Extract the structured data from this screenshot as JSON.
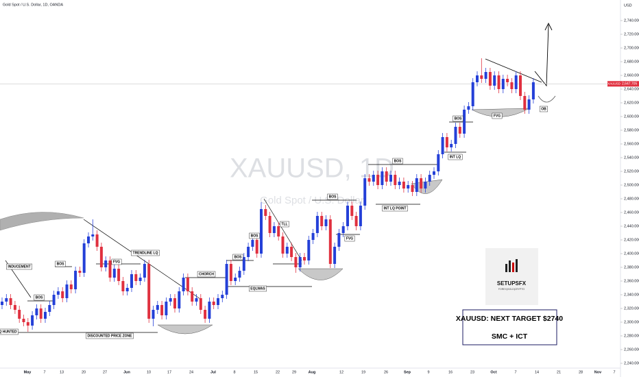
{
  "chart_data": {
    "type": "candlestick",
    "header": "Gold Spot / U.S. Dollar, 1D, OANDA",
    "currency": "USD",
    "watermark": "XAUUSD, 1D",
    "watermark_subtitle": "Gold Spot / U.S. Dollar",
    "symbol": "XAUUSD",
    "last_price": {
      "value": 2647.705,
      "label": "2,647.705"
    },
    "up_color": "#2440d8",
    "down_color": "#e0303f",
    "ylim": [
      2240,
      2740
    ],
    "yticks": [
      {
        "value": 2240,
        "label": "2,240.000"
      },
      {
        "value": 2260,
        "label": "2,260.000"
      },
      {
        "value": 2280,
        "label": "2,280.000"
      },
      {
        "value": 2300,
        "label": "2,300.000"
      },
      {
        "value": 2320,
        "label": "2,320.000"
      },
      {
        "value": 2340,
        "label": "2,340.000"
      },
      {
        "value": 2360,
        "label": "2,360.000"
      },
      {
        "value": 2380,
        "label": "2,380.000"
      },
      {
        "value": 2400,
        "label": "2,400.000"
      },
      {
        "value": 2420,
        "label": "2,420.000"
      },
      {
        "value": 2440,
        "label": "2,440.000"
      },
      {
        "value": 2460,
        "label": "2,460.000"
      },
      {
        "value": 2480,
        "label": "2,480.000"
      },
      {
        "value": 2500,
        "label": "2,500.000"
      },
      {
        "value": 2520,
        "label": "2,520.000"
      },
      {
        "value": 2540,
        "label": "2,540.000"
      },
      {
        "value": 2560,
        "label": "2,560.000"
      },
      {
        "value": 2580,
        "label": "2,580.000"
      },
      {
        "value": 2600,
        "label": "2,600.000"
      },
      {
        "value": 2620,
        "label": "2,620.000"
      },
      {
        "value": 2640,
        "label": "2,640.000"
      },
      {
        "value": 2660,
        "label": "2,660.000"
      },
      {
        "value": 2680,
        "label": "2,680.000"
      },
      {
        "value": 2700,
        "label": "2,700.000"
      },
      {
        "value": 2720,
        "label": "2,720.000"
      },
      {
        "value": 2740,
        "label": "2,740.000"
      }
    ],
    "xtick_labels": [
      "May",
      "7",
      "13",
      "20",
      "27",
      "Jun",
      "10",
      "17",
      "24",
      "Jul",
      "8",
      "15",
      "22",
      "29",
      "Aug",
      "12",
      "19",
      "26",
      "Sep",
      "9",
      "16",
      "23",
      "Oct",
      "7",
      "14",
      "21",
      "28",
      "Nov",
      "7"
    ],
    "open": [
      2325,
      2330,
      2335,
      2325,
      2318,
      2305,
      2300,
      2295,
      2310,
      2320,
      2305,
      2315,
      2325,
      2340,
      2345,
      2335,
      2355,
      2348,
      2375,
      2372,
      2415,
      2425,
      2428,
      2410,
      2380,
      2390,
      2365,
      2378,
      2360,
      2345,
      2350,
      2370,
      2360,
      2365,
      2385,
      2305,
      2318,
      2325,
      2310,
      2330,
      2335,
      2320,
      2345,
      2365,
      2345,
      2330,
      2335,
      2318,
      2305,
      2330,
      2325,
      2335,
      2340,
      2385,
      2360,
      2365,
      2375,
      2395,
      2410,
      2420,
      2400,
      2465,
      2455,
      2430,
      2440,
      2425,
      2400,
      2410,
      2395,
      2380,
      2395,
      2390,
      2420,
      2430,
      2455,
      2440,
      2450,
      2385,
      2410,
      2430,
      2440,
      2470,
      2455,
      2440,
      2470,
      2510,
      2505,
      2515,
      2500,
      2520,
      2505,
      2515,
      2500,
      2505,
      2495,
      2500,
      2490,
      2510,
      2495,
      2505,
      2515,
      2520,
      2545,
      2570,
      2555,
      2560,
      2585,
      2575,
      2610,
      2615,
      2650,
      2660,
      2655,
      2665,
      2645,
      2660,
      2640,
      2655,
      2650,
      2640,
      2660,
      2630,
      2610,
      2625
    ],
    "high": [
      2336,
      2341,
      2341,
      2331,
      2324,
      2311,
      2306,
      2316,
      2326,
      2326,
      2321,
      2331,
      2346,
      2351,
      2351,
      2361,
      2361,
      2381,
      2381,
      2421,
      2431,
      2450,
      2434,
      2416,
      2396,
      2396,
      2384,
      2384,
      2366,
      2356,
      2376,
      2376,
      2371,
      2391,
      2391,
      2324,
      2331,
      2331,
      2336,
      2341,
      2341,
      2351,
      2371,
      2371,
      2351,
      2341,
      2341,
      2324,
      2336,
      2336,
      2341,
      2346,
      2391,
      2391,
      2371,
      2381,
      2401,
      2416,
      2426,
      2426,
      2475,
      2471,
      2461,
      2446,
      2446,
      2431,
      2416,
      2416,
      2401,
      2401,
      2401,
      2426,
      2436,
      2461,
      2461,
      2456,
      2456,
      2416,
      2436,
      2446,
      2476,
      2476,
      2461,
      2476,
      2516,
      2516,
      2521,
      2521,
      2526,
      2526,
      2521,
      2521,
      2511,
      2511,
      2506,
      2506,
      2516,
      2516,
      2511,
      2521,
      2526,
      2551,
      2576,
      2576,
      2566,
      2591,
      2591,
      2616,
      2621,
      2656,
      2666,
      2685,
      2671,
      2671,
      2666,
      2666,
      2661,
      2661,
      2656,
      2666,
      2666,
      2636,
      2631,
      2656
    ],
    "low": [
      2319,
      2324,
      2319,
      2312,
      2299,
      2294,
      2286,
      2289,
      2304,
      2299,
      2299,
      2309,
      2319,
      2334,
      2329,
      2329,
      2342,
      2342,
      2366,
      2366,
      2409,
      2419,
      2404,
      2374,
      2374,
      2359,
      2359,
      2354,
      2339,
      2339,
      2344,
      2354,
      2354,
      2359,
      2299,
      2294,
      2312,
      2304,
      2304,
      2324,
      2314,
      2314,
      2339,
      2339,
      2324,
      2324,
      2312,
      2299,
      2299,
      2319,
      2319,
      2329,
      2334,
      2354,
      2354,
      2359,
      2369,
      2389,
      2404,
      2394,
      2394,
      2449,
      2424,
      2424,
      2419,
      2394,
      2394,
      2389,
      2372,
      2374,
      2384,
      2384,
      2414,
      2424,
      2434,
      2434,
      2379,
      2379,
      2404,
      2424,
      2434,
      2449,
      2434,
      2434,
      2464,
      2499,
      2499,
      2494,
      2494,
      2499,
      2499,
      2494,
      2494,
      2489,
      2489,
      2484,
      2484,
      2489,
      2489,
      2499,
      2509,
      2514,
      2539,
      2549,
      2549,
      2554,
      2569,
      2569,
      2604,
      2609,
      2644,
      2649,
      2649,
      2639,
      2639,
      2634,
      2634,
      2644,
      2634,
      2634,
      2624,
      2604,
      2604,
      2619
    ],
    "close": [
      2330,
      2335,
      2325,
      2318,
      2305,
      2300,
      2295,
      2310,
      2320,
      2305,
      2315,
      2325,
      2340,
      2345,
      2335,
      2355,
      2348,
      2375,
      2372,
      2415,
      2425,
      2428,
      2410,
      2380,
      2390,
      2365,
      2378,
      2360,
      2345,
      2350,
      2370,
      2360,
      2365,
      2385,
      2305,
      2318,
      2325,
      2310,
      2330,
      2335,
      2320,
      2345,
      2365,
      2345,
      2330,
      2335,
      2318,
      2305,
      2330,
      2325,
      2335,
      2340,
      2385,
      2360,
      2365,
      2375,
      2395,
      2410,
      2420,
      2400,
      2465,
      2455,
      2430,
      2440,
      2425,
      2400,
      2410,
      2395,
      2380,
      2395,
      2390,
      2420,
      2430,
      2455,
      2440,
      2450,
      2385,
      2410,
      2430,
      2440,
      2470,
      2455,
      2440,
      2470,
      2510,
      2505,
      2515,
      2500,
      2520,
      2505,
      2515,
      2500,
      2505,
      2495,
      2500,
      2490,
      2510,
      2495,
      2505,
      2515,
      2520,
      2545,
      2570,
      2555,
      2560,
      2585,
      2575,
      2610,
      2615,
      2650,
      2660,
      2655,
      2665,
      2645,
      2660,
      2640,
      2655,
      2650,
      2640,
      2660,
      2630,
      2610,
      2625,
      2650
    ],
    "annotations": [
      "INDUCEMENT",
      "BOS",
      "BOS",
      "FVG",
      "TRENDLINE LQ",
      "CHORCH",
      "BOS",
      "EQLWAS",
      "BOS",
      "TLL",
      "BOS",
      "FVG",
      "BOS",
      "INT LQ POINT",
      "LQ HUNTED",
      "DISCOUNTED PRICE ZONE",
      "BOS",
      "INT LQ",
      "FVG",
      "OB"
    ],
    "target_box": {
      "title": "XAUUSD: NEXT TARGET $2740",
      "subtitle": "SMC + ICT"
    },
    "logo": {
      "name": "SETUPSFX",
      "tagline": "FOREX|GOLD|CRYPTO"
    }
  }
}
